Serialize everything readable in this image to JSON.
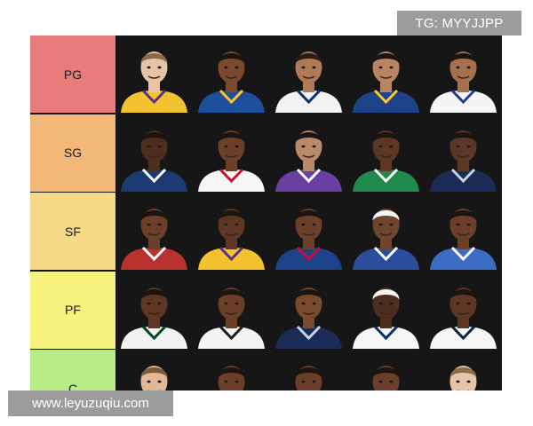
{
  "watermarks": {
    "top": "TG: MYYJJPP",
    "bottom": "www.leyuzuqiu.com"
  },
  "tiers": [
    {
      "label": "PG",
      "color": "#ea7b7b",
      "players": [
        {
          "skin": "#e7c4a8",
          "hair": "#8a6a4a",
          "jersey": "#f2c230",
          "trim": "#5c2d91"
        },
        {
          "skin": "#7a4a2f",
          "hair": "#1b1410",
          "jersey": "#1d4f9c",
          "trim": "#ffc72c"
        },
        {
          "skin": "#b07a55",
          "hair": "#2b1d14",
          "jersey": "#f3f3f3",
          "trim": "#0a2f6f"
        },
        {
          "skin": "#b98563",
          "hair": "#1b1410",
          "jersey": "#1d428a",
          "trim": "#ffc72c"
        },
        {
          "skin": "#a66f4d",
          "hair": "#1b1410",
          "jersey": "#f5f5f5",
          "trim": "#1d428a"
        }
      ]
    },
    {
      "label": "SG",
      "color": "#f3b877",
      "players": [
        {
          "skin": "#4e2f1f",
          "hair": "#1b1410",
          "jersey": "#1e3a74",
          "trim": "#ffffff"
        },
        {
          "skin": "#6b3f29",
          "hair": "#1b1410",
          "jersey": "#f6f6f6",
          "trim": "#c8102e"
        },
        {
          "skin": "#b98a6a",
          "hair": "#1b1410",
          "jersey": "#6a3fa0",
          "trim": "#ffffff"
        },
        {
          "skin": "#5e3624",
          "hair": "#1b1410",
          "jersey": "#1f8a4c",
          "trim": "#ffffff"
        },
        {
          "skin": "#5b3725",
          "hair": "#1b1410",
          "jersey": "#1b2b55",
          "trim": "#c8d3e6"
        }
      ]
    },
    {
      "label": "SF",
      "color": "#f5d987",
      "players": [
        {
          "skin": "#6b3f29",
          "hair": "#1b1410",
          "jersey": "#b8322e",
          "trim": "#ffffff"
        },
        {
          "skin": "#5e3624",
          "hair": "#1b1410",
          "jersey": "#f2c230",
          "trim": "#5c2d91"
        },
        {
          "skin": "#6b3f29",
          "hair": "#1b1410",
          "jersey": "#1d428a",
          "trim": "#c8102e"
        },
        {
          "skin": "#6f4530",
          "hair": "#f5f5f5",
          "jersey": "#2b4d9c",
          "trim": "#ffffff"
        },
        {
          "skin": "#6b3f29",
          "hair": "#1b1410",
          "jersey": "#3b6dc4",
          "trim": "#ffffff"
        }
      ]
    },
    {
      "label": "PF",
      "color": "#f5f27d",
      "players": [
        {
          "skin": "#5e3624",
          "hair": "#1b1410",
          "jersey": "#f2f2f2",
          "trim": "#00471b"
        },
        {
          "skin": "#6b3f29",
          "hair": "#1b1410",
          "jersey": "#f3f3f3",
          "trim": "#1d1d1d"
        },
        {
          "skin": "#7a4a2f",
          "hair": "#1b1410",
          "jersey": "#1b2b55",
          "trim": "#c8d3e6"
        },
        {
          "skin": "#4e2f1f",
          "hair": "#f5f5f5",
          "jersey": "#f6f6f6",
          "trim": "#0a2f6f"
        },
        {
          "skin": "#5e3624",
          "hair": "#1b1410",
          "jersey": "#f6f6f6",
          "trim": "#0c2340"
        }
      ]
    },
    {
      "label": "C",
      "color": "#b8ec86",
      "players": [
        {
          "skin": "#e0b896",
          "hair": "#7a5a3a",
          "jersey": "#0e2240",
          "trim": "#fec524"
        },
        {
          "skin": "#6b3f29",
          "hair": "#1b1410",
          "jersey": "#1d428a",
          "trim": "#ffffff"
        },
        {
          "skin": "#6b3f29",
          "hair": "#1b1410",
          "jersey": "#1d1d1d",
          "trim": "#ffffff"
        },
        {
          "skin": "#6b3f29",
          "hair": "#1b1410",
          "jersey": "#0c2340",
          "trim": "#ffffff"
        },
        {
          "skin": "#e7c4a8",
          "hair": "#8a6a4a",
          "jersey": "#1d1d1d",
          "trim": "#ffffff"
        }
      ]
    }
  ]
}
